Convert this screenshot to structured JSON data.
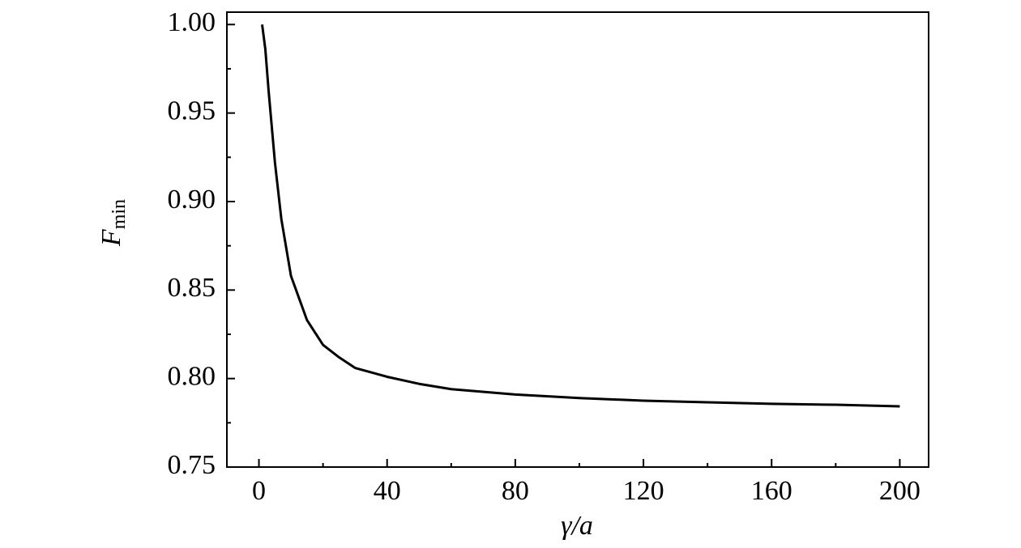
{
  "chart_data": {
    "type": "line",
    "xlabel": "γ/a",
    "ylabel": {
      "main": "F",
      "sub": "min"
    },
    "x": [
      1,
      2,
      3,
      5,
      7,
      10,
      15,
      20,
      25,
      30,
      40,
      50,
      60,
      80,
      100,
      120,
      140,
      160,
      180,
      200
    ],
    "series": [
      {
        "color": "#000000",
        "values": [
          1.0,
          0.986,
          0.963,
          0.922,
          0.89,
          0.858,
          0.833,
          0.819,
          0.812,
          0.806,
          0.801,
          0.797,
          0.794,
          0.791,
          0.789,
          0.7875,
          0.7866,
          0.7857,
          0.7852,
          0.7843
        ]
      }
    ],
    "xlim": [
      -10,
      209
    ],
    "ylim": [
      0.75,
      1.007
    ],
    "xticks": [
      0,
      40,
      80,
      120,
      160,
      200
    ],
    "yticks": [
      {
        "value": 1,
        "label": "1.00"
      },
      0.95,
      {
        "value": 0.9,
        "label": "0.90"
      },
      0.85,
      {
        "value": 0.8,
        "label": "0.80"
      },
      0.75
    ]
  }
}
